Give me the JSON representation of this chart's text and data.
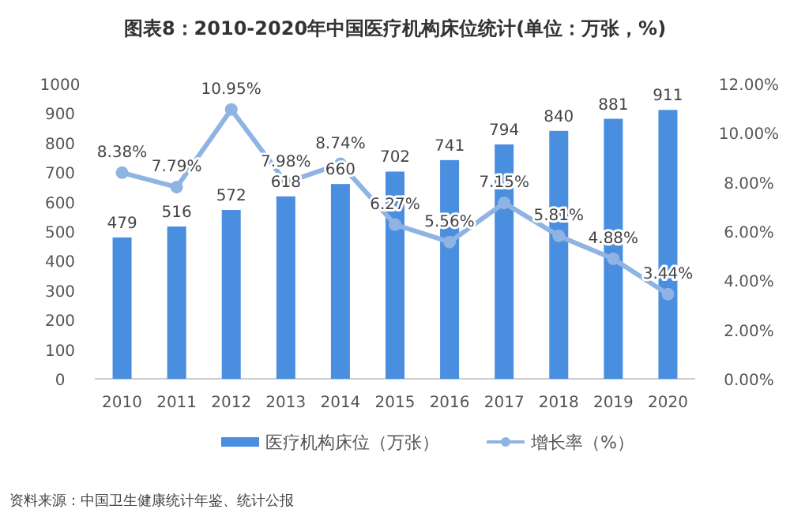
{
  "chart_data": {
    "type": "bar",
    "title": "图表8：2010-2020年中国医疗机构床位统计(单位：万张，%)",
    "categories": [
      "2010",
      "2011",
      "2012",
      "2013",
      "2014",
      "2015",
      "2016",
      "2017",
      "2018",
      "2019",
      "2020"
    ],
    "series": [
      {
        "name": "医疗机构床位（万张）",
        "color": "#4a8ee0",
        "values": [
          479,
          516,
          572,
          618,
          660,
          702,
          741,
          794,
          840,
          881,
          911
        ],
        "data_labels": true
      },
      {
        "name": "增长率（%）",
        "type": "line",
        "axis": "y2",
        "color": "#8fb4e3",
        "marker": "circle",
        "values": [
          8.38,
          7.79,
          10.95,
          7.98,
          8.74,
          6.27,
          5.56,
          7.15,
          5.81,
          4.88,
          3.44
        ],
        "value_labels": [
          "8.38%",
          "7.79%",
          "10.95%",
          "7.98%",
          "8.74%",
          "6.27%",
          "5.56%",
          "7.15%",
          "5.81%",
          "4.88%",
          "3.44%"
        ]
      }
    ],
    "ylim": [
      0,
      1000
    ],
    "yticks": [
      0,
      100,
      200,
      300,
      400,
      500,
      600,
      700,
      800,
      900,
      1000
    ],
    "y2lim": [
      0,
      12
    ],
    "y2ticks": [
      {
        "value": 0,
        "label": "0.00%"
      },
      {
        "value": 2,
        "label": "2.00%"
      },
      {
        "value": 4,
        "label": "4.00%"
      },
      {
        "value": 6,
        "label": "6.00%"
      },
      {
        "value": 8,
        "label": "8.00%"
      },
      {
        "value": 10,
        "label": "10.00%"
      },
      {
        "value": 12,
        "label": "12.00%"
      }
    ],
    "legend": "bottom",
    "grid": false,
    "annotations": [
      "资料来源：中国卫生健康统计年鉴、统计公报"
    ]
  }
}
